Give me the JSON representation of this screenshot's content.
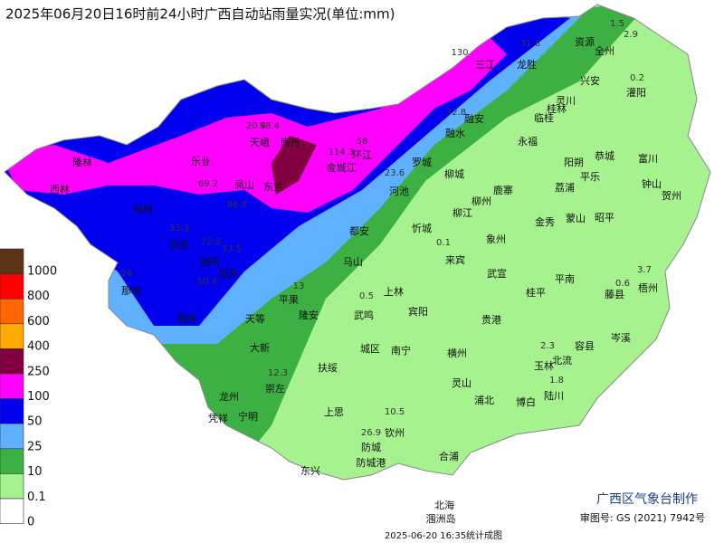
{
  "header": {
    "title": "2025年06月20日16时前24小时广西自动站雨量实况(单位:mm)"
  },
  "legend": {
    "levels": [
      {
        "label": "1000",
        "color": "#5c3317"
      },
      {
        "label": "800",
        "color": "#ff0000"
      },
      {
        "label": "600",
        "color": "#ff6600"
      },
      {
        "label": "400",
        "color": "#ffaa00"
      },
      {
        "label": "250",
        "color": "#800040"
      },
      {
        "label": "100",
        "color": "#ff00ff"
      },
      {
        "label": "50",
        "color": "#0000ee"
      },
      {
        "label": "25",
        "color": "#5fb0ff"
      },
      {
        "label": "10",
        "color": "#3cb043"
      },
      {
        "label": "0.1",
        "color": "#a6f28f"
      },
      {
        "label": "0",
        "color": "#ffffff"
      }
    ]
  },
  "places": [
    "全州",
    "资源",
    "兴安",
    "灌阳",
    "龙胜",
    "三江",
    "灵川",
    "桂林",
    "临桂",
    "融安",
    "永福",
    "融水",
    "阳朔",
    "恭城",
    "富川",
    "罗城",
    "环江",
    "南丹",
    "天峨",
    "乐业",
    "凤山",
    "东兰",
    "金城江",
    "柳城",
    "鹿寨",
    "荔浦",
    "平乐",
    "钟山",
    "贺州",
    "柳州",
    "柳江",
    "河池",
    "忻城",
    "都安",
    "马山",
    "金秀",
    "蒙山",
    "昭平",
    "象州",
    "来宾",
    "武宣",
    "桂平",
    "平南",
    "藤县",
    "梧州",
    "岑溪",
    "西林",
    "隆林",
    "田林",
    "百色",
    "田阳",
    "田东",
    "那坡",
    "靖西",
    "平果",
    "隆安",
    "天等",
    "大新",
    "上林",
    "宾阳",
    "武鸣",
    "贵港",
    "南宁",
    "城区",
    "横州",
    "玉林",
    "北流",
    "容县",
    "扶绥",
    "崇左",
    "龙州",
    "凭祥",
    "宁明",
    "灵山",
    "浦北",
    "博白",
    "陆川",
    "上思",
    "钦州",
    "防城",
    "东兴",
    "防城港",
    "合浦",
    "北海",
    "涠洲岛"
  ],
  "rainfall_labels": [
    "114.3",
    "98.4",
    "58",
    "23.6",
    "33.3",
    "22.9",
    "33.5",
    "50.4",
    "130",
    "31.8",
    "1.5",
    "2.9",
    "0.2",
    "32.8",
    "20.4",
    "69.2",
    "86.9",
    "13",
    "12.3",
    "10.5",
    "26.9",
    "3.7",
    "2.3",
    "1.8",
    "0.6",
    "0.5",
    "0.1",
    "26"
  ],
  "footer": {
    "producer": "广西区气象台制作",
    "approval": "审图号: GS (2021) 7942号",
    "timestamp": "2025-06-20 16:35统计成图"
  }
}
